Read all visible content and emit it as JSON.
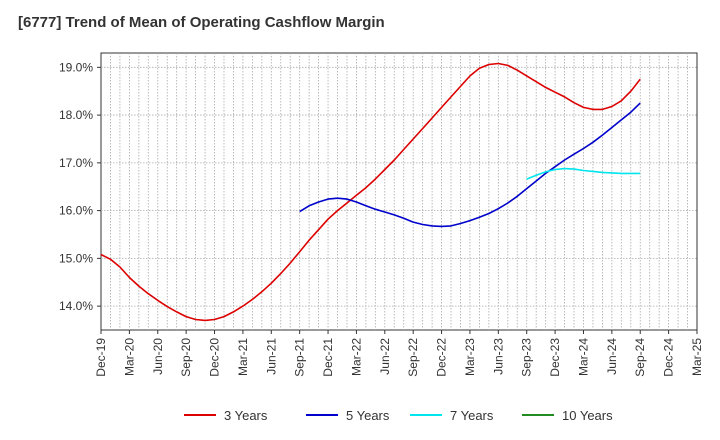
{
  "chart_data": {
    "type": "line",
    "title": "[6777]  Trend of Mean of Operating Cashflow Margin",
    "xlabel": "",
    "ylabel": "",
    "x_range": [
      "2019-12",
      "2025-03"
    ],
    "ylim": [
      13.5,
      19.3
    ],
    "y_ticks": [
      14.0,
      15.0,
      16.0,
      17.0,
      18.0,
      19.0
    ],
    "y_tick_labels": [
      "14.0%",
      "15.0%",
      "16.0%",
      "17.0%",
      "18.0%",
      "19.0%"
    ],
    "x_tick_labels": [
      "Dec-19",
      "Mar-20",
      "Jun-20",
      "Sep-20",
      "Dec-20",
      "Mar-21",
      "Jun-21",
      "Sep-21",
      "Dec-21",
      "Mar-22",
      "Jun-22",
      "Sep-22",
      "Dec-22",
      "Mar-23",
      "Jun-23",
      "Sep-23",
      "Dec-23",
      "Mar-24",
      "Jun-24",
      "Sep-24",
      "Dec-24",
      "Mar-25"
    ],
    "grid": true,
    "legend_position": "bottom",
    "series": [
      {
        "name": "3 Years",
        "color": "#dd0000",
        "x": [
          "2019-12",
          "2020-01",
          "2020-02",
          "2020-03",
          "2020-04",
          "2020-05",
          "2020-06",
          "2020-07",
          "2020-08",
          "2020-09",
          "2020-10",
          "2020-11",
          "2020-12",
          "2021-01",
          "2021-02",
          "2021-03",
          "2021-04",
          "2021-05",
          "2021-06",
          "2021-07",
          "2021-08",
          "2021-09",
          "2021-10",
          "2021-11",
          "2021-12",
          "2022-01",
          "2022-02",
          "2022-03",
          "2022-04",
          "2022-05",
          "2022-06",
          "2022-07",
          "2022-08",
          "2022-09",
          "2022-10",
          "2022-11",
          "2022-12",
          "2023-01",
          "2023-02",
          "2023-03",
          "2023-04",
          "2023-05",
          "2023-06",
          "2023-07",
          "2023-08",
          "2023-09",
          "2023-10",
          "2023-11",
          "2023-12",
          "2024-01",
          "2024-02",
          "2024-03",
          "2024-04",
          "2024-05",
          "2024-06",
          "2024-07",
          "2024-08",
          "2024-09"
        ],
        "values": [
          15.08,
          14.98,
          14.82,
          14.6,
          14.42,
          14.26,
          14.12,
          13.99,
          13.88,
          13.78,
          13.72,
          13.7,
          13.72,
          13.78,
          13.88,
          14.0,
          14.14,
          14.3,
          14.48,
          14.68,
          14.9,
          15.14,
          15.38,
          15.6,
          15.82,
          16.0,
          16.16,
          16.32,
          16.48,
          16.66,
          16.86,
          17.06,
          17.28,
          17.5,
          17.72,
          17.94,
          18.16,
          18.38,
          18.6,
          18.82,
          18.98,
          19.06,
          19.08,
          19.04,
          18.94,
          18.82,
          18.7,
          18.58,
          18.48,
          18.38,
          18.26,
          18.16,
          18.12,
          18.12,
          18.18,
          18.3,
          18.5,
          18.75
        ]
      },
      {
        "name": "5 Years",
        "color": "#0000cc",
        "x": [
          "2021-09",
          "2021-10",
          "2021-11",
          "2021-12",
          "2022-01",
          "2022-02",
          "2022-03",
          "2022-04",
          "2022-05",
          "2022-06",
          "2022-07",
          "2022-08",
          "2022-09",
          "2022-10",
          "2022-11",
          "2022-12",
          "2023-01",
          "2023-02",
          "2023-03",
          "2023-04",
          "2023-05",
          "2023-06",
          "2023-07",
          "2023-08",
          "2023-09",
          "2023-10",
          "2023-11",
          "2023-12",
          "2024-01",
          "2024-02",
          "2024-03",
          "2024-04",
          "2024-05",
          "2024-06",
          "2024-07",
          "2024-08",
          "2024-09"
        ],
        "values": [
          15.98,
          16.1,
          16.18,
          16.24,
          16.26,
          16.24,
          16.18,
          16.1,
          16.03,
          15.97,
          15.91,
          15.84,
          15.76,
          15.71,
          15.68,
          15.67,
          15.68,
          15.73,
          15.79,
          15.86,
          15.94,
          16.04,
          16.16,
          16.3,
          16.46,
          16.62,
          16.78,
          16.92,
          17.06,
          17.18,
          17.3,
          17.43,
          17.58,
          17.74,
          17.9,
          18.06,
          18.25
        ]
      },
      {
        "name": "7 Years",
        "color": "#00e5ee",
        "x": [
          "2023-09",
          "2023-10",
          "2023-11",
          "2023-12",
          "2024-01",
          "2024-02",
          "2024-03",
          "2024-04",
          "2024-05",
          "2024-06",
          "2024-07",
          "2024-08",
          "2024-09"
        ],
        "values": [
          16.66,
          16.74,
          16.81,
          16.86,
          16.88,
          16.87,
          16.84,
          16.82,
          16.8,
          16.79,
          16.78,
          16.78,
          16.78
        ]
      },
      {
        "name": "10 Years",
        "color": "#228b22",
        "x": [],
        "values": []
      }
    ]
  }
}
